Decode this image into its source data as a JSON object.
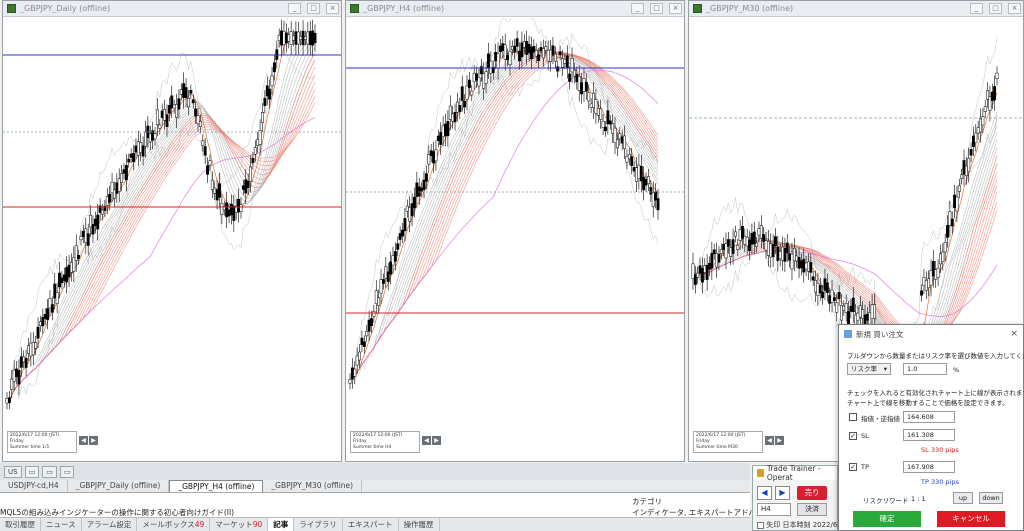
{
  "charts": [
    {
      "title": "_GBPJPY_Daily (offline)",
      "info": [
        "2022/6/17 12:00 (JST)",
        "Friday",
        "Summer time   1/1"
      ]
    },
    {
      "title": "_GBPJPY_H4 (offline)",
      "info": [
        "2022/6/17 12:00 (JST)",
        "Friday",
        "Summer time   H4"
      ]
    },
    {
      "title": "_GBPJPY_M30 (offline)",
      "info": [
        "2022/6/17 12:00 (JST)",
        "Friday",
        "Summer time   M30"
      ]
    }
  ],
  "window_tabs": [
    "US",
    "",
    "",
    ""
  ],
  "chart_tabs": [
    "USDJPY-cd,H4",
    "_GBPJPY_Daily (offline)",
    "_GBPJPY_H4 (offline)",
    "_GBPJPY_M30 (offline)"
  ],
  "terminal": {
    "article_row": "MQL5の組み込みインジケーターの操作に関する初心者向けガイド(II)",
    "category_header": "カテゴリ",
    "category_value": "インディケータ, エキスパートアドバイザー, インデ"
  },
  "bottom_tabs": [
    {
      "label": "取引履歴",
      "count": ""
    },
    {
      "label": "ニュース",
      "count": ""
    },
    {
      "label": "アラーム設定",
      "count": ""
    },
    {
      "label": "メールボックス",
      "count": "49"
    },
    {
      "label": "マーケット",
      "count": "90"
    },
    {
      "label": "記事",
      "count": ""
    },
    {
      "label": "ライブラリ",
      "count": ""
    },
    {
      "label": "エキスパート",
      "count": ""
    },
    {
      "label": "操作履歴",
      "count": ""
    }
  ],
  "trainer": {
    "title": "Trade Trainer - Operat",
    "sell": "売り",
    "timeframe": "H4",
    "settle": "決済",
    "time_label": "矢印",
    "time_value": "日本時刻 2022/6"
  },
  "dialog": {
    "title": "新規 買い注文",
    "instruction": "プルダウンから数量またはリスク率を選び数値を入力してください。",
    "mode_select": "リスク率",
    "risk_value": "1.0",
    "risk_unit": "%",
    "note1": "チェックを入れると有効化されチャート上に線が表示されます。",
    "note2": "チャート上で線を移動することで価格を設定できます。",
    "limit_label": "指値・逆指値",
    "limit_value": "164.608",
    "sl_label": "SL",
    "sl_value": "161.308",
    "sl_pips": "SL 330 pips",
    "tp_label": "TP",
    "tp_value": "167.908",
    "tp_pips": "TP 330 pips",
    "rr_label": "リスクリワード",
    "rr_value": "1 : 1",
    "up": "up",
    "down": "down",
    "confirm": "確定",
    "cancel": "キャンセル"
  },
  "colors": {
    "buy_line": "#3030d0",
    "sell_line": "#e02020",
    "ok": "#2aaa3a",
    "cancel": "#e01a24"
  }
}
